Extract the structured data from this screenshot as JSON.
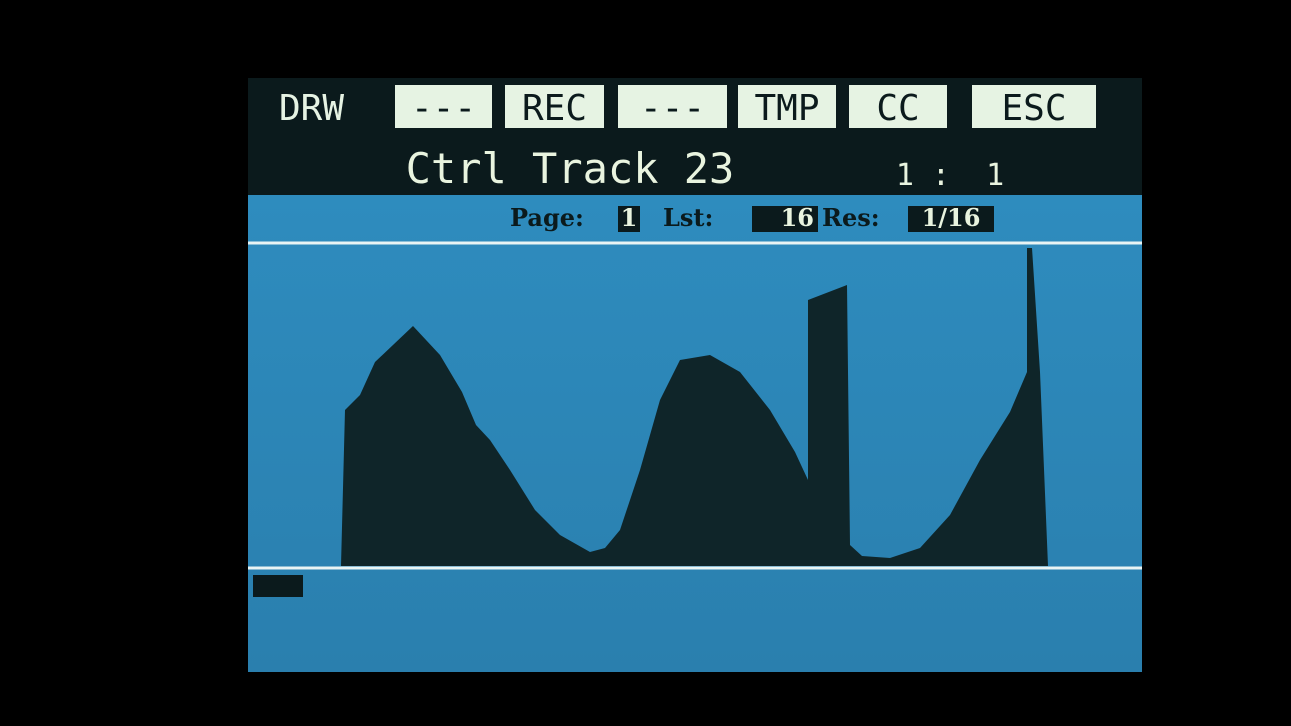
{
  "menu": {
    "buttons": [
      "DRW",
      "---",
      "REC",
      "---",
      "TMP",
      "CC",
      "ESC"
    ]
  },
  "header": {
    "title": "Ctrl Track 23",
    "position": "1 :  1"
  },
  "info": {
    "page_label": "Page:",
    "page": "1",
    "last_label": "Lst:",
    "last": "16",
    "res_label": "Res:",
    "res": "1/16"
  }
}
